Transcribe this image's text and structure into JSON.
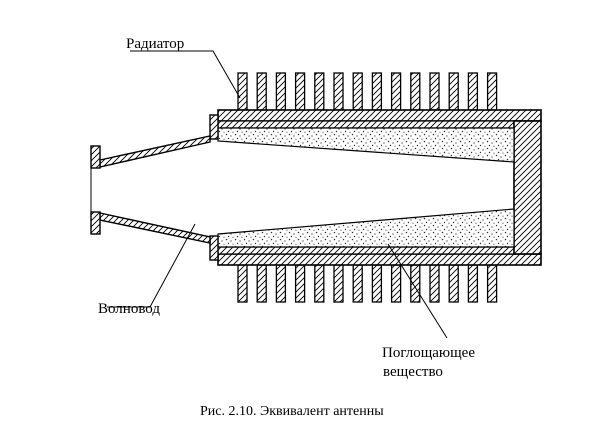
{
  "labels": {
    "radiator": "Радиатор",
    "waveguide": "Волновод",
    "absorber_line1": "Поглощающее",
    "absorber_line2": "вещество"
  },
  "caption": "Рис. 2.10. Эквивалент антенны",
  "colors": {
    "ink": "#000000",
    "background": "#ffffff",
    "dots": "#333333"
  }
}
